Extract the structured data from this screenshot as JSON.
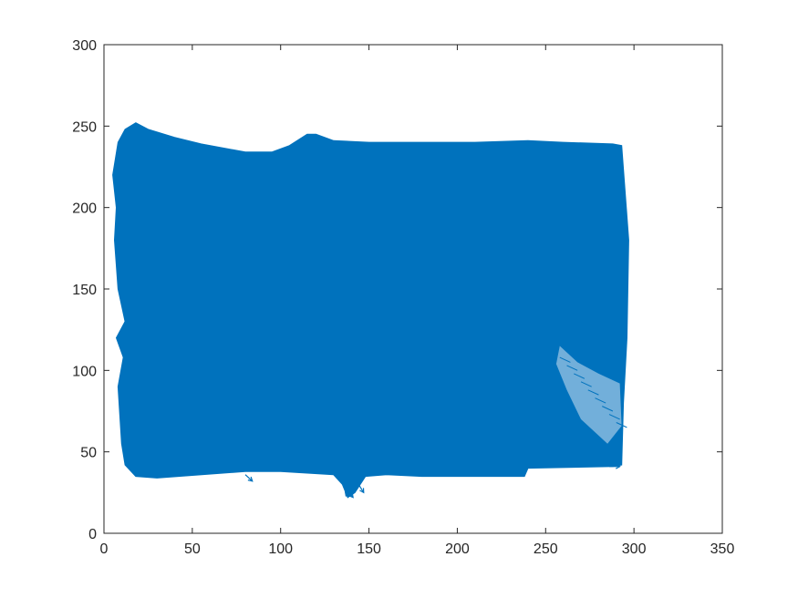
{
  "chart_data": {
    "type": "quiver",
    "title": "",
    "xlabel": "",
    "ylabel": "",
    "xlim": [
      0,
      350
    ],
    "ylim": [
      0,
      300
    ],
    "xticks": [
      0,
      50,
      100,
      150,
      200,
      250,
      300,
      350
    ],
    "yticks": [
      0,
      50,
      100,
      150,
      200,
      250,
      300
    ],
    "grid": false,
    "box": true,
    "series": [
      {
        "color": "#0072BD",
        "region_outline": [
          [
            8,
            240
          ],
          [
            12,
            248
          ],
          [
            18,
            252
          ],
          [
            25,
            248
          ],
          [
            40,
            243
          ],
          [
            55,
            239
          ],
          [
            70,
            236
          ],
          [
            80,
            234
          ],
          [
            95,
            234
          ],
          [
            105,
            238
          ],
          [
            115,
            245
          ],
          [
            120,
            245
          ],
          [
            130,
            241
          ],
          [
            150,
            240
          ],
          [
            180,
            240
          ],
          [
            210,
            240
          ],
          [
            240,
            241
          ],
          [
            260,
            240
          ],
          [
            288,
            239
          ],
          [
            293,
            238
          ],
          [
            297,
            180
          ],
          [
            296,
            120
          ],
          [
            294,
            80
          ],
          [
            293,
            42
          ],
          [
            288,
            41
          ],
          [
            240,
            40
          ],
          [
            238,
            35
          ],
          [
            180,
            35
          ],
          [
            160,
            36
          ],
          [
            148,
            35
          ],
          [
            142,
            25
          ],
          [
            138,
            22
          ],
          [
            135,
            30
          ],
          [
            130,
            36
          ],
          [
            100,
            38
          ],
          [
            80,
            38
          ],
          [
            30,
            34
          ],
          [
            18,
            35
          ],
          [
            12,
            42
          ],
          [
            10,
            55
          ],
          [
            8,
            90
          ],
          [
            11,
            108
          ],
          [
            7,
            120
          ],
          [
            12,
            130
          ],
          [
            8,
            150
          ],
          [
            6,
            180
          ],
          [
            7,
            200
          ],
          [
            5,
            220
          ],
          [
            8,
            240
          ]
        ],
        "sparse_region": [
          [
            258,
            115
          ],
          [
            268,
            105
          ],
          [
            280,
            98
          ],
          [
            292,
            92
          ],
          [
            293,
            66
          ],
          [
            285,
            55
          ],
          [
            270,
            70
          ],
          [
            262,
            88
          ],
          [
            256,
            104
          ]
        ],
        "stray_vectors": [
          {
            "x": 135,
            "y": 30,
            "u": 6,
            "v": -8
          },
          {
            "x": 140,
            "y": 33,
            "u": -3,
            "v": -10
          },
          {
            "x": 143,
            "y": 32,
            "u": 4,
            "v": -7
          },
          {
            "x": 80,
            "y": 36,
            "u": 4,
            "v": -4
          },
          {
            "x": 286,
            "y": 41,
            "u": 6,
            "v": 0
          }
        ]
      }
    ]
  }
}
